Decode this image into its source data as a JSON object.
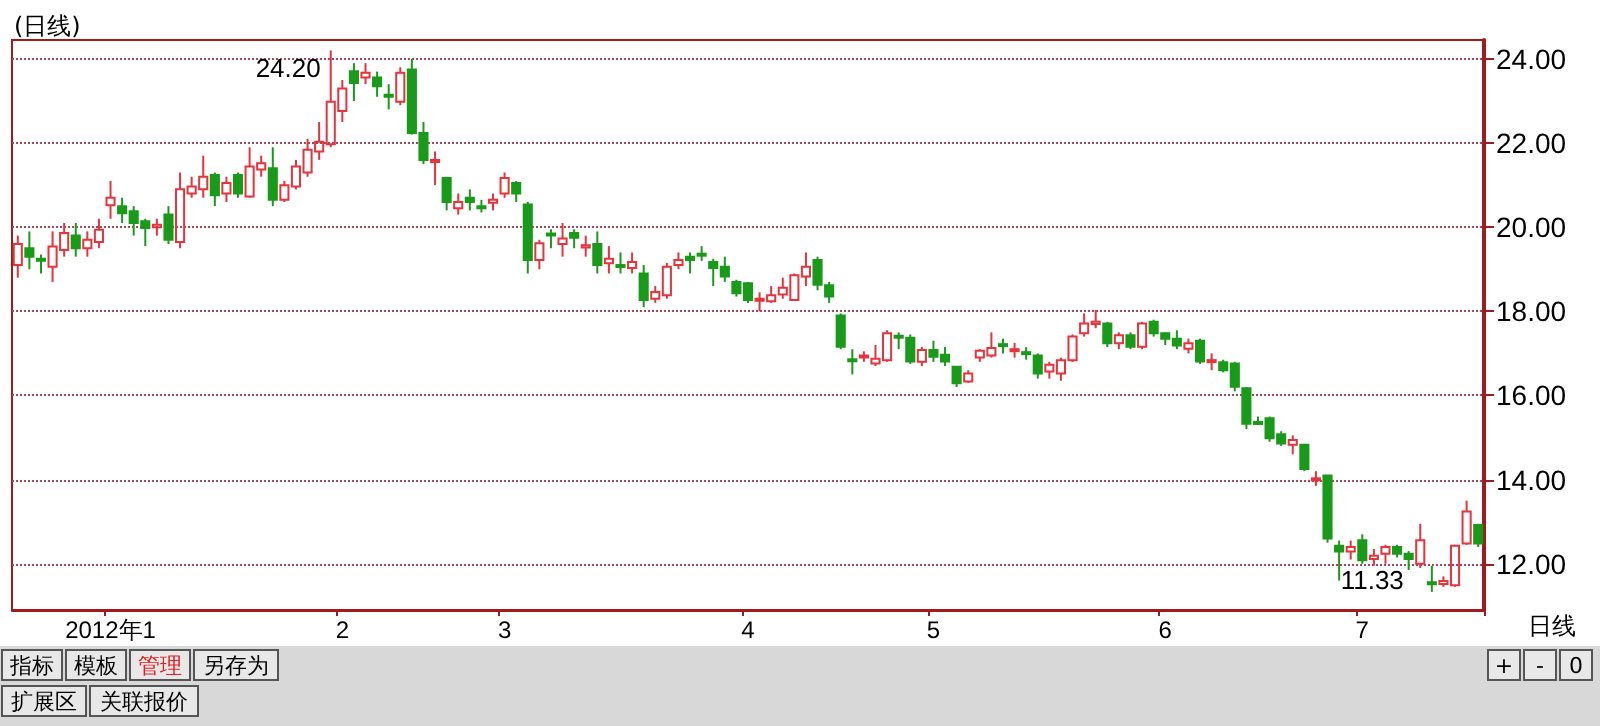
{
  "chart_data": {
    "type": "candlestick",
    "title": "(日线)",
    "xlabel": "日线",
    "categories": [
      null,
      null,
      null,
      null,
      null,
      null,
      null,
      null,
      "2012年1",
      null,
      null,
      null,
      null,
      null,
      null,
      null,
      null,
      null,
      null,
      null,
      null,
      null,
      null,
      null,
      null,
      null,
      null,
      null,
      "2",
      null,
      null,
      null,
      null,
      null,
      null,
      null,
      null,
      null,
      null,
      null,
      null,
      null,
      "3",
      null,
      null,
      null,
      null,
      null,
      null,
      null,
      null,
      null,
      null,
      null,
      null,
      null,
      null,
      null,
      null,
      null,
      null,
      null,
      null,
      "4",
      null,
      null,
      null,
      null,
      null,
      null,
      null,
      null,
      null,
      null,
      null,
      null,
      null,
      null,
      null,
      "5",
      null,
      null,
      null,
      null,
      null,
      null,
      null,
      null,
      null,
      null,
      null,
      null,
      null,
      null,
      null,
      null,
      null,
      null,
      null,
      "6",
      null,
      null,
      null,
      null,
      null,
      null,
      null,
      null,
      null,
      null,
      null,
      null,
      null,
      null,
      null,
      null,
      "7",
      null,
      null,
      null,
      null,
      null,
      null,
      null,
      null,
      null,
      null
    ],
    "ohlc": [
      [
        19.1,
        19.8,
        18.8,
        19.6
      ],
      [
        19.5,
        19.9,
        19.0,
        19.3
      ],
      [
        19.25,
        19.35,
        18.9,
        19.2
      ],
      [
        19.06,
        19.9,
        18.7,
        19.54
      ],
      [
        19.46,
        20.1,
        19.3,
        19.86
      ],
      [
        19.8,
        20.1,
        19.3,
        19.5
      ],
      [
        19.5,
        19.9,
        19.3,
        19.7
      ],
      [
        19.65,
        20.2,
        19.5,
        19.94
      ],
      [
        20.52,
        21.1,
        20.2,
        20.7
      ],
      [
        20.5,
        20.7,
        20.1,
        20.33
      ],
      [
        20.38,
        20.5,
        19.8,
        20.1
      ],
      [
        20.14,
        20.2,
        19.55,
        19.98
      ],
      [
        20.0,
        20.2,
        19.8,
        20.06
      ],
      [
        20.3,
        20.5,
        19.6,
        19.7
      ],
      [
        19.65,
        21.3,
        19.5,
        20.9
      ],
      [
        20.8,
        21.2,
        20.7,
        20.97
      ],
      [
        20.9,
        21.7,
        20.7,
        21.2
      ],
      [
        21.24,
        21.3,
        20.5,
        20.76
      ],
      [
        20.8,
        21.2,
        20.6,
        21.05
      ],
      [
        21.24,
        21.3,
        20.7,
        20.8
      ],
      [
        20.73,
        21.9,
        20.7,
        21.44
      ],
      [
        21.37,
        21.7,
        21.2,
        21.52
      ],
      [
        21.4,
        21.9,
        20.5,
        20.65
      ],
      [
        20.65,
        21.1,
        20.6,
        21.0
      ],
      [
        20.97,
        21.6,
        20.9,
        21.44
      ],
      [
        21.3,
        22.1,
        21.2,
        21.84
      ],
      [
        21.8,
        22.5,
        21.6,
        22.03
      ],
      [
        21.97,
        24.2,
        21.9,
        22.98
      ],
      [
        22.76,
        23.5,
        22.5,
        23.3
      ],
      [
        23.71,
        23.9,
        23.0,
        23.43
      ],
      [
        23.56,
        23.9,
        23.4,
        23.67
      ],
      [
        23.56,
        23.7,
        23.1,
        23.35
      ],
      [
        23.15,
        23.4,
        22.8,
        23.1
      ],
      [
        22.98,
        23.8,
        22.9,
        23.67
      ],
      [
        23.75,
        24.0,
        22.2,
        22.24
      ],
      [
        22.24,
        22.5,
        21.5,
        21.6
      ],
      [
        21.55,
        21.8,
        21.0,
        21.6
      ],
      [
        21.17,
        21.2,
        20.4,
        20.6
      ],
      [
        20.45,
        20.8,
        20.3,
        20.6
      ],
      [
        20.7,
        20.9,
        20.4,
        20.6
      ],
      [
        20.5,
        20.65,
        20.35,
        20.45
      ],
      [
        20.58,
        20.8,
        20.4,
        20.65
      ],
      [
        20.8,
        21.3,
        20.7,
        21.17
      ],
      [
        21.05,
        21.1,
        20.6,
        20.8
      ],
      [
        20.54,
        20.6,
        18.9,
        19.22
      ],
      [
        19.22,
        19.7,
        19.0,
        19.62
      ],
      [
        19.85,
        19.95,
        19.5,
        19.8
      ],
      [
        19.6,
        20.1,
        19.3,
        19.73
      ],
      [
        19.86,
        19.95,
        19.5,
        19.75
      ],
      [
        19.52,
        19.8,
        19.3,
        19.57
      ],
      [
        19.6,
        19.9,
        18.9,
        19.1
      ],
      [
        19.14,
        19.55,
        18.9,
        19.25
      ],
      [
        19.1,
        19.4,
        18.9,
        19.06
      ],
      [
        19.03,
        19.4,
        18.9,
        19.17
      ],
      [
        18.9,
        19.1,
        18.1,
        18.27
      ],
      [
        18.3,
        18.6,
        18.2,
        18.46
      ],
      [
        18.38,
        19.15,
        18.3,
        19.06
      ],
      [
        19.1,
        19.4,
        19.0,
        19.22
      ],
      [
        19.3,
        19.4,
        18.9,
        19.22
      ],
      [
        19.37,
        19.55,
        19.2,
        19.33
      ],
      [
        19.17,
        19.25,
        18.6,
        19.03
      ],
      [
        19.06,
        19.3,
        18.7,
        18.83
      ],
      [
        18.7,
        18.75,
        18.35,
        18.43
      ],
      [
        18.67,
        18.7,
        18.2,
        18.27
      ],
      [
        18.25,
        18.45,
        18.0,
        18.3
      ],
      [
        18.24,
        18.6,
        18.2,
        18.38
      ],
      [
        18.4,
        18.8,
        18.3,
        18.56
      ],
      [
        18.27,
        18.9,
        18.25,
        18.86
      ],
      [
        18.83,
        19.4,
        18.6,
        19.06
      ],
      [
        19.22,
        19.3,
        18.5,
        18.63
      ],
      [
        18.62,
        18.7,
        18.2,
        18.35
      ],
      [
        17.9,
        17.95,
        17.1,
        17.16
      ],
      [
        16.86,
        17.1,
        16.5,
        16.84
      ],
      [
        16.9,
        17.05,
        16.8,
        16.95
      ],
      [
        16.76,
        17.2,
        16.7,
        16.87
      ],
      [
        16.84,
        17.55,
        16.8,
        17.48
      ],
      [
        17.42,
        17.5,
        17.1,
        17.38
      ],
      [
        17.37,
        17.45,
        16.75,
        16.81
      ],
      [
        16.8,
        17.15,
        16.7,
        17.08
      ],
      [
        17.08,
        17.3,
        16.8,
        16.92
      ],
      [
        16.97,
        17.15,
        16.7,
        16.81
      ],
      [
        16.68,
        16.7,
        16.2,
        16.29
      ],
      [
        16.33,
        16.6,
        16.3,
        16.52
      ],
      [
        16.9,
        17.1,
        16.8,
        17.06
      ],
      [
        16.95,
        17.5,
        16.9,
        17.13
      ],
      [
        17.22,
        17.35,
        17.0,
        17.2
      ],
      [
        17.06,
        17.25,
        16.9,
        17.1
      ],
      [
        17.03,
        17.15,
        16.85,
        17.0
      ],
      [
        16.95,
        17.0,
        16.4,
        16.52
      ],
      [
        16.57,
        16.8,
        16.4,
        16.73
      ],
      [
        16.52,
        16.9,
        16.35,
        16.84
      ],
      [
        16.84,
        17.45,
        16.8,
        17.4
      ],
      [
        17.48,
        17.95,
        17.4,
        17.71
      ],
      [
        17.7,
        18.03,
        17.6,
        17.75
      ],
      [
        17.71,
        17.75,
        17.15,
        17.24
      ],
      [
        17.24,
        17.5,
        17.1,
        17.43
      ],
      [
        17.43,
        17.5,
        17.1,
        17.16
      ],
      [
        17.16,
        17.75,
        17.1,
        17.71
      ],
      [
        17.75,
        17.8,
        17.4,
        17.48
      ],
      [
        17.48,
        17.5,
        17.2,
        17.35
      ],
      [
        17.35,
        17.55,
        17.1,
        17.19
      ],
      [
        17.11,
        17.35,
        17.0,
        17.24
      ],
      [
        17.3,
        17.35,
        16.75,
        16.81
      ],
      [
        16.8,
        17.0,
        16.6,
        16.84
      ],
      [
        16.79,
        16.85,
        16.55,
        16.6
      ],
      [
        16.76,
        16.8,
        16.1,
        16.21
      ],
      [
        16.17,
        16.2,
        15.2,
        15.33
      ],
      [
        15.37,
        15.5,
        15.3,
        15.35
      ],
      [
        15.46,
        15.5,
        14.9,
        14.98
      ],
      [
        15.08,
        15.15,
        14.8,
        14.86
      ],
      [
        14.83,
        15.05,
        14.6,
        14.94
      ],
      [
        14.83,
        14.85,
        14.2,
        14.25
      ],
      [
        14.0,
        14.2,
        13.85,
        14.03
      ],
      [
        14.1,
        14.1,
        12.5,
        12.6
      ],
      [
        12.43,
        12.55,
        11.6,
        12.29
      ],
      [
        12.29,
        12.55,
        12.1,
        12.4
      ],
      [
        12.56,
        12.7,
        12.0,
        12.08
      ],
      [
        12.11,
        12.35,
        11.95,
        12.19
      ],
      [
        12.24,
        12.45,
        12.0,
        12.4
      ],
      [
        12.4,
        12.45,
        12.15,
        12.24
      ],
      [
        12.24,
        12.3,
        11.85,
        12.11
      ],
      [
        12.0,
        12.95,
        11.9,
        12.56
      ],
      [
        11.56,
        11.95,
        11.33,
        11.52
      ],
      [
        11.52,
        11.7,
        11.45,
        11.59
      ],
      [
        11.49,
        12.45,
        11.45,
        12.43
      ],
      [
        12.48,
        13.5,
        12.45,
        13.24
      ],
      [
        12.92,
        12.95,
        12.4,
        12.48
      ]
    ],
    "colors": [
      "#e8323c",
      "#1a9a1a",
      "#1a9a1a",
      "#e8323c",
      "#e8323c",
      "#1a9a1a",
      "#e8323c",
      "#e8323c",
      "#e8323c",
      "#1a9a1a",
      "#1a9a1a",
      "#1a9a1a",
      "#e8323c",
      "#1a9a1a",
      "#e8323c",
      "#e8323c",
      "#e8323c",
      "#1a9a1a",
      "#e8323c",
      "#1a9a1a",
      "#e8323c",
      "#e8323c",
      "#1a9a1a",
      "#e8323c",
      "#e8323c",
      "#e8323c",
      "#e8323c",
      "#e8323c",
      "#e8323c",
      "#1a9a1a",
      "#e8323c",
      "#1a9a1a",
      "#1a9a1a",
      "#e8323c",
      "#1a9a1a",
      "#1a9a1a",
      "#e8323c",
      "#1a9a1a",
      "#e8323c",
      "#1a9a1a",
      "#1a9a1a",
      "#e8323c",
      "#e8323c",
      "#1a9a1a",
      "#1a9a1a",
      "#e8323c",
      "#1a9a1a",
      "#e8323c",
      "#1a9a1a",
      "#e8323c",
      "#1a9a1a",
      "#e8323c",
      "#1a9a1a",
      "#e8323c",
      "#1a9a1a",
      "#e8323c",
      "#e8323c",
      "#e8323c",
      "#1a9a1a",
      "#1a9a1a",
      "#1a9a1a",
      "#1a9a1a",
      "#1a9a1a",
      "#1a9a1a",
      "#e8323c",
      "#e8323c",
      "#e8323c",
      "#e8323c",
      "#e8323c",
      "#1a9a1a",
      "#1a9a1a",
      "#1a9a1a",
      "#1a9a1a",
      "#e8323c",
      "#e8323c",
      "#e8323c",
      "#1a9a1a",
      "#1a9a1a",
      "#e8323c",
      "#1a9a1a",
      "#1a9a1a",
      "#1a9a1a",
      "#e8323c",
      "#e8323c",
      "#e8323c",
      "#1a9a1a",
      "#e8323c",
      "#1a9a1a",
      "#1a9a1a",
      "#e8323c",
      "#e8323c",
      "#e8323c",
      "#e8323c",
      "#e8323c",
      "#1a9a1a",
      "#e8323c",
      "#1a9a1a",
      "#e8323c",
      "#1a9a1a",
      "#1a9a1a",
      "#1a9a1a",
      "#e8323c",
      "#1a9a1a",
      "#e8323c",
      "#1a9a1a",
      "#1a9a1a",
      "#1a9a1a",
      "#1a9a1a",
      "#1a9a1a",
      "#1a9a1a",
      "#e8323c",
      "#1a9a1a",
      "#e8323c",
      "#1a9a1a",
      "#1a9a1a",
      "#e8323c",
      "#1a9a1a",
      "#e8323c",
      "#e8323c",
      "#1a9a1a",
      "#1a9a1a",
      "#e8323c",
      "#1a9a1a",
      "#e8323c",
      "#e8323c",
      "#e8323c",
      "#1a9a1a"
    ],
    "ylim": [
      10.9,
      24.45
    ],
    "yticks": [
      {
        "value": 12,
        "label": "12.00"
      },
      {
        "value": 14,
        "label": "14.00"
      },
      {
        "value": 16,
        "label": "16.00"
      },
      {
        "value": 18,
        "label": "18.00"
      },
      {
        "value": 20,
        "label": "20.00"
      },
      {
        "value": 22,
        "label": "22.00"
      },
      {
        "value": 24,
        "label": "24.00"
      }
    ],
    "grid": "y",
    "annotations": [
      "24.20",
      "11.33",
      "指标",
      "模板",
      "管理",
      "另存为",
      "+",
      "-",
      "0",
      "扩展区",
      "关联报价"
    ]
  }
}
